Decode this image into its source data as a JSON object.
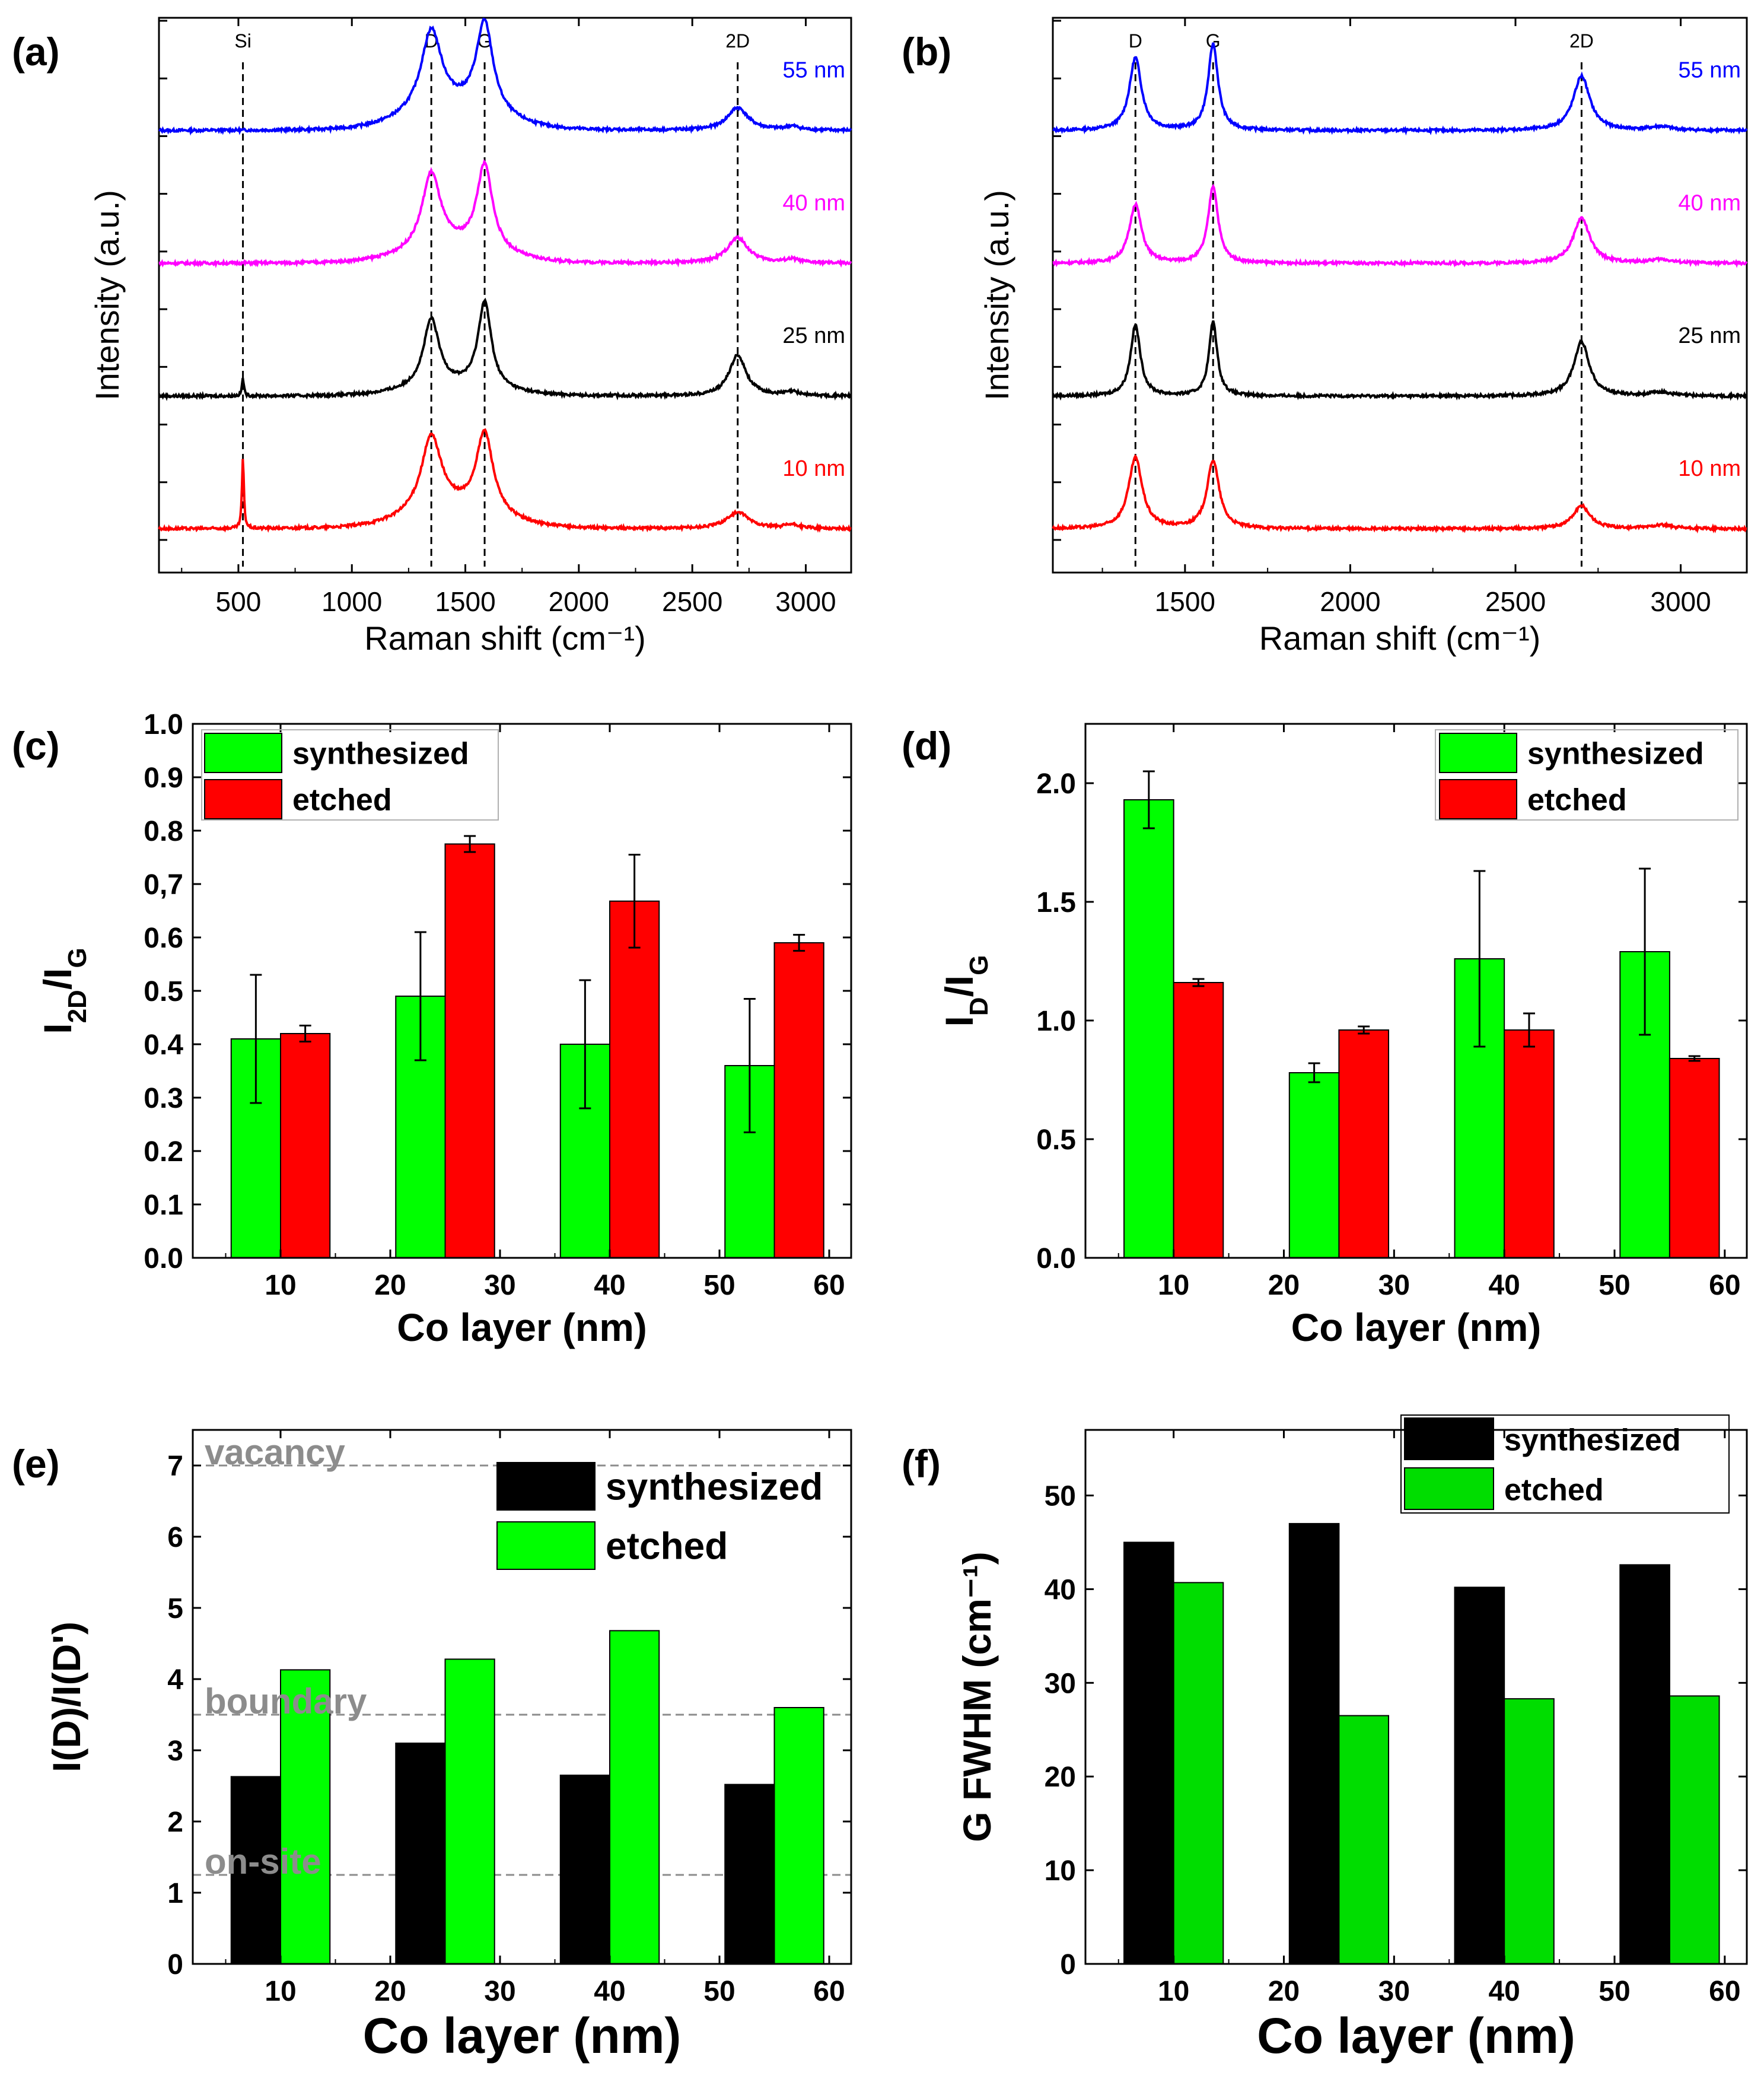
{
  "panels": {
    "a": {
      "label": "(a)"
    },
    "b": {
      "label": "(b)"
    },
    "c": {
      "label": "(c)"
    },
    "d": {
      "label": "(d)"
    },
    "e": {
      "label": "(e)"
    },
    "f": {
      "label": "(f)"
    }
  },
  "chart_data": [
    {
      "id": "a",
      "type": "line",
      "title": "",
      "xlabel": "Raman shift (cm⁻¹)",
      "ylabel": "Intensity (a.u.)",
      "xlim": [
        150,
        3200
      ],
      "xticks": [
        500,
        1000,
        1500,
        2000,
        2500,
        3000
      ],
      "peaks": [
        {
          "name": "Si",
          "x": 520
        },
        {
          "name": "D",
          "x": 1350
        },
        {
          "name": "G",
          "x": 1585
        },
        {
          "name": "2D",
          "x": 2700
        }
      ],
      "series": [
        {
          "name": "55 nm",
          "color": "#0000ff",
          "offset": 3,
          "dH": 0.9,
          "gH": 1.0,
          "twoDH": 0.25,
          "siH": 0.0,
          "dW": 55,
          "gW": 45,
          "twoDW": 55,
          "bg": 0.22
        },
        {
          "name": "40 nm",
          "color": "#ff00ff",
          "offset": 2,
          "dH": 0.85,
          "gH": 0.95,
          "twoDH": 0.28,
          "siH": 0.0,
          "dW": 50,
          "gW": 42,
          "twoDW": 55,
          "bg": 0.15
        },
        {
          "name": "25 nm",
          "color": "#000000",
          "offset": 1,
          "dH": 0.75,
          "gH": 0.95,
          "twoDH": 0.45,
          "siH": 0.2,
          "dW": 42,
          "gW": 35,
          "twoDW": 45,
          "bg": 0.1
        },
        {
          "name": "10 nm",
          "color": "#ff0000",
          "offset": 0,
          "dH": 0.85,
          "gH": 0.9,
          "twoDH": 0.18,
          "siH": 0.78,
          "dW": 55,
          "gW": 45,
          "twoDW": 60,
          "bg": 0.18
        }
      ]
    },
    {
      "id": "b",
      "type": "line",
      "title": "",
      "xlabel": "Raman shift (cm⁻¹)",
      "ylabel": "Intensity (a.u.)",
      "xlim": [
        1100,
        3200
      ],
      "xticks": [
        1500,
        2000,
        2500,
        3000
      ],
      "peaks": [
        {
          "name": "D",
          "x": 1350
        },
        {
          "name": "G",
          "x": 1585
        },
        {
          "name": "2D",
          "x": 2700
        }
      ],
      "series": [
        {
          "name": "55 nm",
          "color": "#0000ff",
          "offset": 3,
          "dH": 0.8,
          "gH": 0.95,
          "twoDH": 0.6,
          "dW": 22,
          "gW": 18,
          "twoDW": 30
        },
        {
          "name": "40 nm",
          "color": "#ff00ff",
          "offset": 2,
          "dH": 0.65,
          "gH": 0.85,
          "twoDH": 0.5,
          "dW": 22,
          "gW": 18,
          "twoDW": 30
        },
        {
          "name": "25 nm",
          "color": "#000000",
          "offset": 1,
          "dH": 0.78,
          "gH": 0.82,
          "twoDH": 0.6,
          "dW": 18,
          "gW": 15,
          "twoDW": 28
        },
        {
          "name": "10 nm",
          "color": "#ff0000",
          "offset": 0,
          "dH": 0.78,
          "gH": 0.75,
          "twoDH": 0.25,
          "dW": 25,
          "gW": 22,
          "twoDW": 32
        }
      ]
    },
    {
      "id": "c",
      "type": "bar",
      "xlabel": "Co layer (nm)",
      "ylabel": "I2D/IG",
      "xlim": [
        2,
        62
      ],
      "ylim": [
        0,
        1.0
      ],
      "xticks": [
        10,
        20,
        30,
        40,
        50,
        60
      ],
      "yticks": [
        0.0,
        0.1,
        0.2,
        0.3,
        0.4,
        0.5,
        0.6,
        0.7,
        0.8,
        0.9,
        1.0
      ],
      "ytick_labels": [
        "0.0",
        "0.1",
        "0.2",
        "0.3",
        "0.4",
        "0.5",
        "0.6",
        "0,7",
        "0.8",
        "0.9",
        "1.0"
      ],
      "categories": [
        10,
        25,
        40,
        55
      ],
      "bar_width": 4.5,
      "series": [
        {
          "name": "synthesized",
          "color": "#00ff00",
          "values": [
            0.41,
            0.49,
            0.4,
            0.36
          ],
          "errors": [
            0.12,
            0.12,
            0.12,
            0.125
          ]
        },
        {
          "name": "etched",
          "color": "#ff0000",
          "values": [
            0.42,
            0.775,
            0.668,
            0.59
          ],
          "errors": [
            0.015,
            0.015,
            0.087,
            0.015
          ]
        }
      ]
    },
    {
      "id": "d",
      "type": "bar",
      "xlabel": "Co layer (nm)",
      "ylabel": "ID/IG",
      "xlim": [
        2,
        62
      ],
      "ylim": [
        0,
        2.25
      ],
      "xticks": [
        10,
        20,
        30,
        40,
        50,
        60
      ],
      "yticks": [
        0.0,
        0.5,
        1.0,
        1.5,
        2.0
      ],
      "ytick_labels": [
        "0.0",
        "0.5",
        "1.0",
        "1.5",
        "2.0"
      ],
      "categories": [
        10,
        25,
        40,
        55
      ],
      "bar_width": 4.5,
      "series": [
        {
          "name": "synthesized",
          "color": "#00ff00",
          "values": [
            1.93,
            0.78,
            1.26,
            1.29
          ],
          "errors": [
            0.12,
            0.04,
            0.37,
            0.35
          ]
        },
        {
          "name": "etched",
          "color": "#ff0000",
          "values": [
            1.16,
            0.96,
            0.96,
            0.84
          ],
          "errors": [
            0.015,
            0.015,
            0.07,
            0.01
          ]
        }
      ]
    },
    {
      "id": "e",
      "type": "bar",
      "xlabel": "Co layer (nm)",
      "ylabel": "I(D)/I(D')",
      "xlim": [
        2,
        62
      ],
      "ylim": [
        0,
        7.5
      ],
      "xticks": [
        10,
        20,
        30,
        40,
        50,
        60
      ],
      "yticks": [
        0,
        1,
        2,
        3,
        4,
        5,
        6,
        7
      ],
      "ytick_labels": [
        "0",
        "1",
        "2",
        "3",
        "4",
        "5",
        "6",
        "7"
      ],
      "categories": [
        10,
        25,
        40,
        55
      ],
      "bar_width": 4.5,
      "reference_lines": [
        {
          "name": "vacancy",
          "value": 7.0
        },
        {
          "name": "boundary",
          "value": 3.5
        },
        {
          "name": "on-site",
          "value": 1.25
        }
      ],
      "series": [
        {
          "name": "synthesized",
          "color": "#000000",
          "values": [
            2.63,
            3.1,
            2.65,
            2.52
          ]
        },
        {
          "name": "etched",
          "color": "#00ff00",
          "values": [
            4.13,
            4.28,
            4.68,
            3.6
          ]
        }
      ]
    },
    {
      "id": "f",
      "type": "bar",
      "xlabel": "Co layer (nm)",
      "ylabel": "G FWHM (cm⁻¹)",
      "xlim": [
        2,
        62
      ],
      "ylim": [
        0,
        57
      ],
      "xticks": [
        10,
        20,
        30,
        40,
        50,
        60
      ],
      "yticks": [
        0,
        10,
        20,
        30,
        40,
        50
      ],
      "ytick_labels": [
        "0",
        "10",
        "20",
        "30",
        "40",
        "50"
      ],
      "categories": [
        10,
        25,
        40,
        55
      ],
      "bar_width": 4.5,
      "series": [
        {
          "name": "synthesized",
          "color": "#000000",
          "values": [
            45.0,
            47.0,
            40.2,
            42.6
          ]
        },
        {
          "name": "etched",
          "color": "#00dd00",
          "values": [
            40.7,
            26.5,
            28.3,
            28.6
          ]
        }
      ]
    }
  ]
}
